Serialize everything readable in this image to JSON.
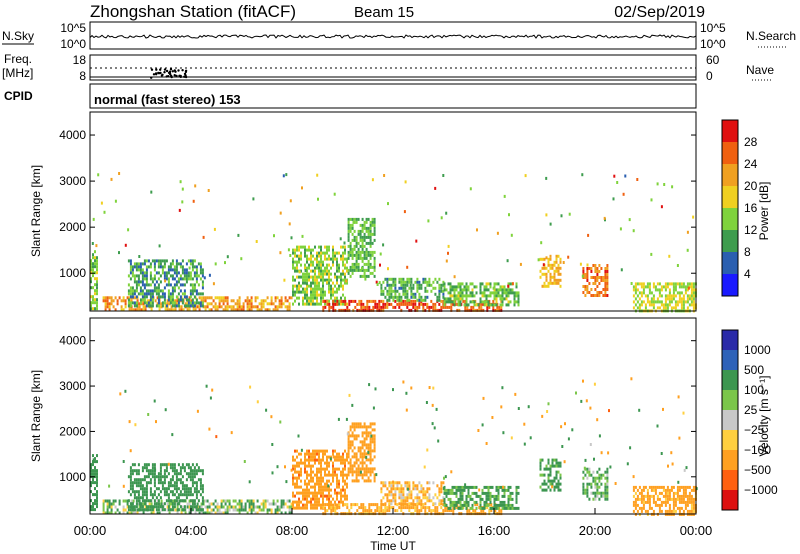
{
  "header": {
    "station": "Zhongshan Station (fitACF)",
    "beam": "Beam 15",
    "date": "02/Sep/2019",
    "cpid_label": "CPID",
    "cpid_value": "normal (fast stereo) 153"
  },
  "top_panels": {
    "nsky": {
      "label": "N.Sky",
      "left_ticks": [
        "10^5",
        "10^0"
      ],
      "right_label": "N.Search",
      "right_ticks": [
        "10^5",
        "10^0"
      ]
    },
    "freq": {
      "label_line1": "Freq.",
      "label_line2": "[MHz]",
      "left_ticks": [
        "18",
        "8"
      ],
      "right_label": "Nave",
      "right_ticks": [
        "60",
        "0"
      ]
    }
  },
  "colors": {
    "power_scale": [
      "#1a1aff",
      "#2a5fb0",
      "#3e9c4e",
      "#7fd33c",
      "#f0d020",
      "#f0a020",
      "#f06010",
      "#e01010"
    ],
    "velocity_scale": [
      "#2a2aa8",
      "#2e62b8",
      "#3c9650",
      "#7bc64a",
      "#c8c8c8",
      "#ffd040",
      "#ffa020",
      "#ff6010",
      "#dd1010"
    ]
  },
  "chart_data": [
    {
      "type": "heatmap",
      "name_panel": "power",
      "ylabel": "Slant Range [km]",
      "ylim": [
        180,
        4500
      ],
      "yticks": [
        "4000",
        "3000",
        "2000",
        "1000"
      ],
      "xlim_hours": [
        0,
        24
      ],
      "colorbar_label": "Power [dB]",
      "colorbar_ticks": [
        "28",
        "24",
        "20",
        "16",
        "12",
        "8",
        "4"
      ],
      "clim": [
        0,
        32
      ],
      "regions": [
        {
          "t0": 0.0,
          "t1": 0.3,
          "r0": 250,
          "r1": 1500,
          "value": 14
        },
        {
          "t0": 0.5,
          "t1": 8.0,
          "r0": 200,
          "r1": 500,
          "value": 22
        },
        {
          "t0": 1.5,
          "t1": 4.5,
          "r0": 300,
          "r1": 1300,
          "value": 10
        },
        {
          "t0": 8.0,
          "t1": 10.2,
          "r0": 300,
          "r1": 1600,
          "value": 14
        },
        {
          "t0": 10.2,
          "t1": 11.3,
          "r0": 900,
          "r1": 2200,
          "value": 12
        },
        {
          "t0": 9.2,
          "t1": 16.3,
          "r0": 200,
          "r1": 420,
          "value": 27
        },
        {
          "t0": 11.5,
          "t1": 14.0,
          "r0": 400,
          "r1": 900,
          "value": 11
        },
        {
          "t0": 14.0,
          "t1": 17.0,
          "r0": 300,
          "r1": 800,
          "value": 13
        },
        {
          "t0": 17.8,
          "t1": 18.6,
          "r0": 700,
          "r1": 1400,
          "value": 20
        },
        {
          "t0": 19.5,
          "t1": 20.5,
          "r0": 500,
          "r1": 1200,
          "value": 25
        },
        {
          "t0": 21.5,
          "t1": 24.0,
          "r0": 200,
          "r1": 800,
          "value": 16
        }
      ]
    },
    {
      "type": "heatmap",
      "name_panel": "velocity",
      "ylabel": "Slant Range [km]",
      "ylim": [
        180,
        4500
      ],
      "yticks": [
        "4000",
        "3000",
        "2000",
        "1000"
      ],
      "xlabel": "Time UT",
      "xticks": [
        "00:00",
        "04:00",
        "08:00",
        "12:00",
        "16:00",
        "20:00",
        "00:00"
      ],
      "xlim_hours": [
        0,
        24
      ],
      "colorbar_label": "Velocity [m s⁻¹]",
      "colorbar_ticks": [
        "1000",
        "500",
        "100",
        "25",
        "−25",
        "−100",
        "−500",
        "−1000"
      ],
      "regions": [
        {
          "t0": 0.0,
          "t1": 0.3,
          "r0": 250,
          "r1": 1500,
          "value": 300
        },
        {
          "t0": 0.5,
          "t1": 8.0,
          "r0": 200,
          "r1": 500,
          "value": 60
        },
        {
          "t0": 1.5,
          "t1": 4.5,
          "r0": 300,
          "r1": 1300,
          "value": 300
        },
        {
          "t0": 8.0,
          "t1": 10.2,
          "r0": 300,
          "r1": 1600,
          "value": -400
        },
        {
          "t0": 10.2,
          "t1": 11.3,
          "r0": 900,
          "r1": 2200,
          "value": -300
        },
        {
          "t0": 9.2,
          "t1": 16.3,
          "r0": 200,
          "r1": 420,
          "value": -150
        },
        {
          "t0": 11.5,
          "t1": 14.0,
          "r0": 400,
          "r1": 900,
          "value": -120
        },
        {
          "t0": 14.0,
          "t1": 17.0,
          "r0": 300,
          "r1": 800,
          "value": 150
        },
        {
          "t0": 17.8,
          "t1": 18.6,
          "r0": 700,
          "r1": 1400,
          "value": 200
        },
        {
          "t0": 19.5,
          "t1": 20.5,
          "r0": 500,
          "r1": 1200,
          "value": 120
        },
        {
          "t0": 21.5,
          "t1": 24.0,
          "r0": 200,
          "r1": 800,
          "value": -200
        }
      ]
    }
  ]
}
